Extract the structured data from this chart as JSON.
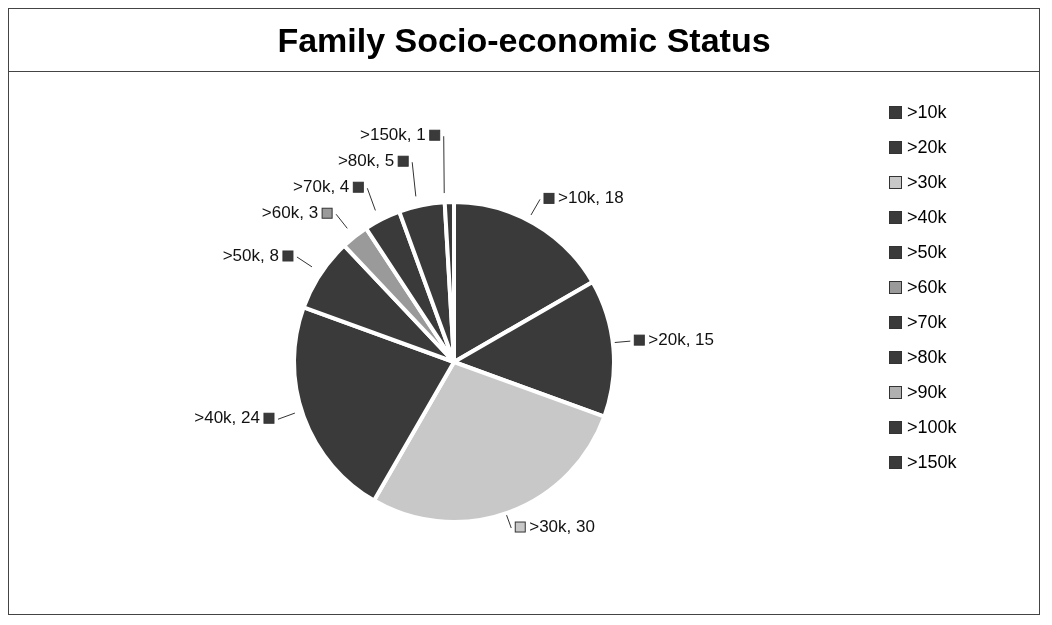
{
  "chart_data": {
    "type": "pie",
    "title": "Family Socio-economic Status",
    "categories": [
      ">10k",
      ">20k",
      ">30k",
      ">40k",
      ">50k",
      ">60k",
      ">70k",
      ">80k",
      ">90k",
      ">100k",
      ">150k"
    ],
    "values": [
      18,
      15,
      30,
      24,
      8,
      3,
      4,
      5,
      0,
      0,
      1
    ],
    "colors": [
      "#3a3a3a",
      "#3a3a3a",
      "#c8c8c8",
      "#3a3a3a",
      "#3a3a3a",
      "#9a9a9a",
      "#3a3a3a",
      "#3a3a3a",
      "#b0b0b0",
      "#3a3a3a",
      "#3a3a3a"
    ],
    "value_labels": [
      ">10k, 18",
      ">20k, 15",
      ">30k, 30",
      ">40k, 24",
      ">50k, 8",
      ">60k, 3",
      ">70k, 4",
      ">80k, 5",
      null,
      null,
      ">150k, 1"
    ],
    "legend": "right"
  }
}
